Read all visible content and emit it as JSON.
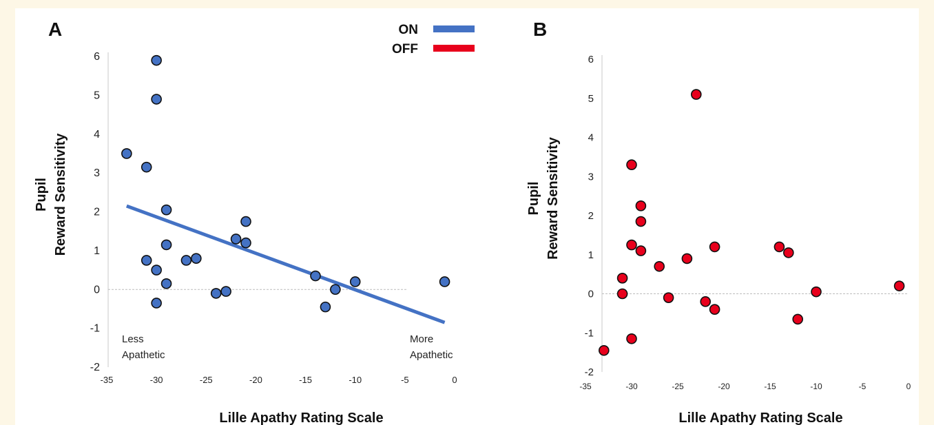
{
  "legend": [
    {
      "label": "ON",
      "color": "#4472c4"
    },
    {
      "label": "OFF",
      "color": "#e8001c"
    }
  ],
  "chart_data": [
    {
      "type": "scatter",
      "panel": "A",
      "xlabel": "Lille Apathy Rating Scale",
      "ylabel": [
        "Pupil",
        "Reward Sensitivity"
      ],
      "xlim": [
        -35,
        0
      ],
      "ylim": [
        -2,
        6
      ],
      "x_ticks": [
        -35,
        -30,
        -25,
        -20,
        -15,
        -10,
        -5,
        0
      ],
      "y_ticks": [
        -2,
        -1,
        0,
        1,
        2,
        3,
        4,
        5,
        6
      ],
      "grid": false,
      "point_color": "#4472c4",
      "annotations": [
        {
          "lines": [
            "Less",
            "Apathetic"
          ],
          "position": "bottom-left"
        },
        {
          "lines": [
            "More",
            "Apathetic"
          ],
          "position": "bottom-right"
        }
      ],
      "series": [
        {
          "name": "ON",
          "x": [
            -33,
            -31,
            -31,
            -30,
            -30,
            -30,
            -30,
            -29,
            -29,
            -29,
            -27,
            -26,
            -24,
            -23,
            -22,
            -21,
            -21,
            -14,
            -13,
            -12,
            -10,
            -1
          ],
          "y": [
            3.5,
            3.15,
            0.75,
            5.9,
            4.9,
            0.5,
            -0.35,
            2.05,
            1.15,
            0.15,
            0.75,
            0.8,
            -0.1,
            -0.05,
            1.3,
            1.75,
            1.2,
            0.35,
            -0.45,
            0.0,
            0.2,
            0.2
          ]
        }
      ],
      "trendline": {
        "x": [
          -33,
          -1
        ],
        "y": [
          2.15,
          -0.85
        ],
        "color": "#4472c4"
      }
    },
    {
      "type": "scatter",
      "panel": "B",
      "xlabel": "Lille Apathy Rating Scale",
      "ylabel": [
        "Pupil",
        "Reward Sensitivity"
      ],
      "xlim": [
        -35,
        0
      ],
      "ylim": [
        -2,
        6
      ],
      "x_ticks": [
        -35,
        -30,
        -25,
        -20,
        -15,
        -10,
        -5,
        0
      ],
      "y_ticks": [
        -2,
        -1,
        0,
        1,
        2,
        3,
        4,
        5,
        6
      ],
      "grid": false,
      "point_color": "#e8001c",
      "series": [
        {
          "name": "OFF",
          "x": [
            -33,
            -31,
            -31,
            -30,
            -30,
            -30,
            -29,
            -29,
            -29,
            -27,
            -26,
            -24,
            -23,
            -22,
            -21,
            -21,
            -14,
            -13,
            -12,
            -10,
            -1
          ],
          "y": [
            -1.45,
            0.4,
            0.0,
            3.3,
            1.25,
            -1.15,
            2.25,
            1.85,
            1.1,
            0.7,
            -0.1,
            0.9,
            5.1,
            -0.2,
            1.2,
            -0.4,
            1.2,
            1.05,
            -0.65,
            0.05,
            0.2
          ]
        }
      ]
    }
  ]
}
